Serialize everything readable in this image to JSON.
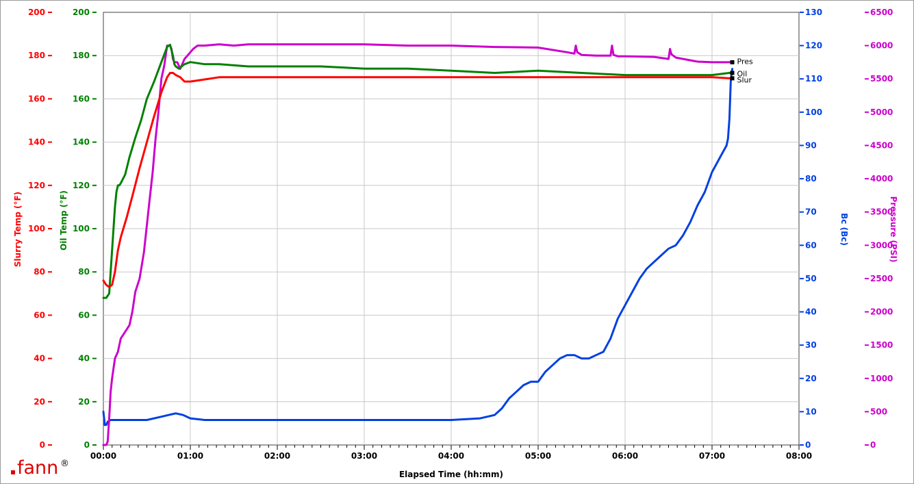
{
  "chart_data": {
    "type": "line",
    "xlabel": "Elapsed Time (hh:mm)",
    "x_ticks": [
      "00:00",
      "01:00",
      "02:00",
      "03:00",
      "04:00",
      "05:00",
      "06:00",
      "07:00",
      "08:00"
    ],
    "xlim_minutes": [
      0,
      480
    ],
    "grid": true,
    "axes": [
      {
        "id": "slurry",
        "label": "Slurry Temp (°F)",
        "side": "left",
        "color": "#ff0000",
        "ylim": [
          0,
          200
        ],
        "ticks": [
          "0",
          "20",
          "40",
          "60",
          "80",
          "100",
          "120",
          "140",
          "160",
          "180",
          "200"
        ]
      },
      {
        "id": "oil",
        "label": "Oil Temp (°F)",
        "side": "left",
        "color": "#008000",
        "ylim": [
          0,
          200
        ],
        "ticks": [
          "0",
          "20",
          "40",
          "60",
          "80",
          "100",
          "120",
          "140",
          "160",
          "180",
          "200"
        ]
      },
      {
        "id": "bc",
        "label": "Bc (Bc)",
        "side": "right",
        "color": "#0040e0",
        "ylim": [
          0,
          130
        ],
        "ticks": [
          "0",
          "10",
          "20",
          "30",
          "40",
          "50",
          "60",
          "70",
          "80",
          "90",
          "100",
          "110",
          "120",
          "130"
        ]
      },
      {
        "id": "pressure",
        "label": "Pressure (PSI)",
        "side": "right",
        "color": "#cc00cc",
        "ylim": [
          0,
          6500
        ],
        "ticks": [
          "0",
          "500",
          "1000",
          "1500",
          "2000",
          "2500",
          "3000",
          "3500",
          "4000",
          "4500",
          "5000",
          "5500",
          "6000",
          "6500"
        ]
      }
    ],
    "series": [
      {
        "name": "Slur",
        "axis": "slurry",
        "color": "#ff0000",
        "x": [
          0,
          2,
          4,
          6,
          8,
          10,
          12,
          16,
          20,
          25,
          30,
          35,
          40,
          44,
          46,
          48,
          50,
          53,
          56,
          60,
          70,
          80,
          100,
          120,
          150,
          180,
          210,
          240,
          270,
          300,
          330,
          360,
          390,
          420,
          432,
          433
        ],
        "y": [
          76,
          74,
          73,
          74,
          80,
          90,
          96,
          105,
          115,
          128,
          140,
          152,
          163,
          170,
          172,
          172,
          171,
          170,
          168,
          168,
          169,
          170,
          170,
          170,
          170,
          170,
          170,
          170,
          170,
          170,
          170,
          170,
          170,
          170,
          169.5,
          169.5
        ]
      },
      {
        "name": "Oil",
        "axis": "oil",
        "color": "#008000",
        "x": [
          0,
          2,
          4,
          5,
          6,
          7,
          8,
          9,
          10,
          11,
          12,
          15,
          18,
          22,
          26,
          30,
          35,
          40,
          44,
          46,
          48,
          49,
          50,
          52,
          54,
          56,
          60,
          70,
          80,
          100,
          120,
          150,
          180,
          210,
          240,
          270,
          300,
          330,
          360,
          390,
          420,
          432,
          433
        ],
        "y": [
          68,
          68,
          70,
          80,
          90,
          100,
          110,
          117,
          120,
          120,
          121,
          125,
          133,
          142,
          150,
          160,
          168,
          177,
          184,
          185,
          180,
          176,
          175,
          174,
          175,
          176,
          177,
          176,
          176,
          175,
          175,
          175,
          174,
          174,
          173,
          172,
          173,
          172,
          171,
          171,
          171,
          172,
          172
        ]
      },
      {
        "name": "Bc",
        "axis": "bc",
        "color": "#0040e0",
        "x": [
          0,
          1,
          2,
          3,
          5,
          10,
          20,
          30,
          40,
          45,
          50,
          55,
          60,
          70,
          90,
          120,
          150,
          180,
          210,
          240,
          260,
          270,
          275,
          280,
          285,
          290,
          295,
          300,
          305,
          310,
          315,
          320,
          325,
          330,
          335,
          340,
          345,
          350,
          355,
          360,
          365,
          370,
          375,
          380,
          385,
          390,
          395,
          400,
          405,
          410,
          415,
          420,
          425,
          430,
          431,
          432,
          433,
          434
        ],
        "y": [
          10,
          6,
          6,
          7,
          7.5,
          7.5,
          7.5,
          7.5,
          8.5,
          9,
          9.5,
          9,
          8,
          7.5,
          7.5,
          7.5,
          7.5,
          7.5,
          7.5,
          7.5,
          8,
          9,
          11,
          14,
          16,
          18,
          19,
          19,
          22,
          24,
          26,
          27,
          27,
          26,
          26,
          27,
          28,
          32,
          38,
          42,
          46,
          50,
          53,
          55,
          57,
          59,
          60,
          63,
          67,
          72,
          76,
          82,
          86,
          90,
          92,
          98,
          110,
          113
        ]
      },
      {
        "name": "Pres",
        "axis": "pressure",
        "color": "#cc00cc",
        "x": [
          0,
          1,
          2,
          3,
          4,
          5,
          6,
          8,
          10,
          12,
          15,
          18,
          20,
          22,
          25,
          28,
          30,
          32,
          34,
          36,
          38,
          40,
          42,
          44,
          45,
          46,
          47,
          48,
          49,
          50,
          51,
          52,
          53,
          54,
          56,
          58,
          60,
          62,
          65,
          70,
          80,
          90,
          100,
          120,
          150,
          180,
          210,
          240,
          270,
          300,
          320,
          325,
          326,
          327,
          330,
          340,
          350,
          351,
          352,
          355,
          360,
          380,
          390,
          391,
          392,
          395,
          400,
          410,
          420,
          432,
          433
        ],
        "y": [
          0,
          0,
          0,
          50,
          400,
          800,
          1000,
          1300,
          1400,
          1600,
          1700,
          1800,
          2000,
          2300,
          2500,
          2900,
          3300,
          3700,
          4100,
          4600,
          5000,
          5500,
          5700,
          6000,
          6000,
          6000,
          5950,
          5800,
          5750,
          5750,
          5750,
          5700,
          5650,
          5700,
          5800,
          5850,
          5900,
          5950,
          6000,
          6000,
          6020,
          6000,
          6020,
          6020,
          6020,
          6020,
          6000,
          6000,
          5980,
          5970,
          5900,
          5880,
          6000,
          5900,
          5860,
          5850,
          5850,
          6000,
          5860,
          5840,
          5840,
          5830,
          5800,
          5950,
          5870,
          5820,
          5800,
          5760,
          5750,
          5750,
          5750
        ]
      }
    ],
    "end_labels": [
      "Pres",
      "Oil",
      "Slur"
    ]
  },
  "logo": {
    "word": "fann",
    "mark": "®"
  }
}
